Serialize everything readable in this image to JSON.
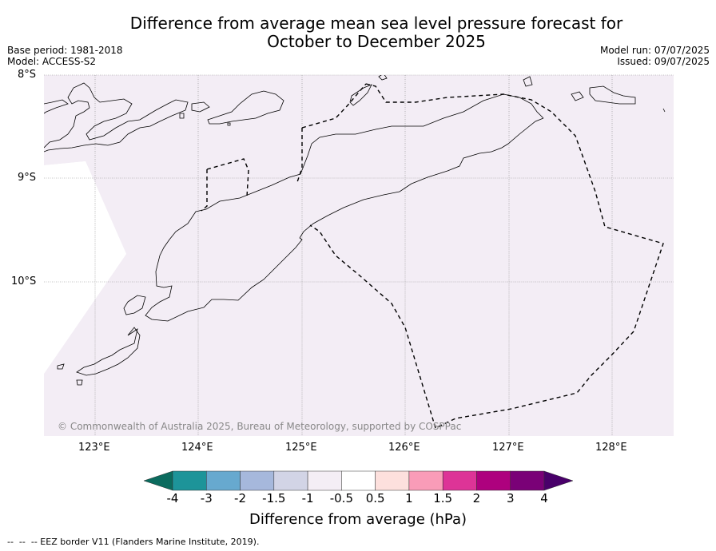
{
  "title_line1": "Difference from average mean sea level pressure forecast for",
  "title_line2": "October to December 2025",
  "meta": {
    "base_period": "Base period: 1981-2018",
    "model": "Model: ACCESS-S2",
    "model_run": "Model run: 07/07/2025",
    "issued": "Issued: 09/07/2025"
  },
  "map": {
    "lat_labels": [
      "8°S",
      "9°S",
      "10°S"
    ],
    "lon_labels": [
      "123°E",
      "124°E",
      "125°E",
      "126°E",
      "127°E",
      "128°E"
    ],
    "copyright": "© Commonwealth of Australia 2025, Bureau of Meteorology, supported by COSPPac",
    "fill_color": "#f3edf5",
    "coast_color": "#000000"
  },
  "colorbar": {
    "label": "Difference from average (hPa)",
    "ticks": [
      "-4",
      "-3",
      "-2",
      "-1.5",
      "-1",
      "-0.5",
      "0.5",
      "1",
      "1.5",
      "2",
      "3",
      "4"
    ],
    "colors": [
      "#0b6b5e",
      "#1d9499",
      "#67a9cf",
      "#a6b8dc",
      "#d2d4e6",
      "#f4eef5",
      "#ffffff",
      "#fde0dd",
      "#f99cb8",
      "#dd3497",
      "#ae017e",
      "#7a0177",
      "#49006a"
    ]
  },
  "footer": "--  --  -- EEZ border V11 (Flanders Marine Institute, 2019)."
}
